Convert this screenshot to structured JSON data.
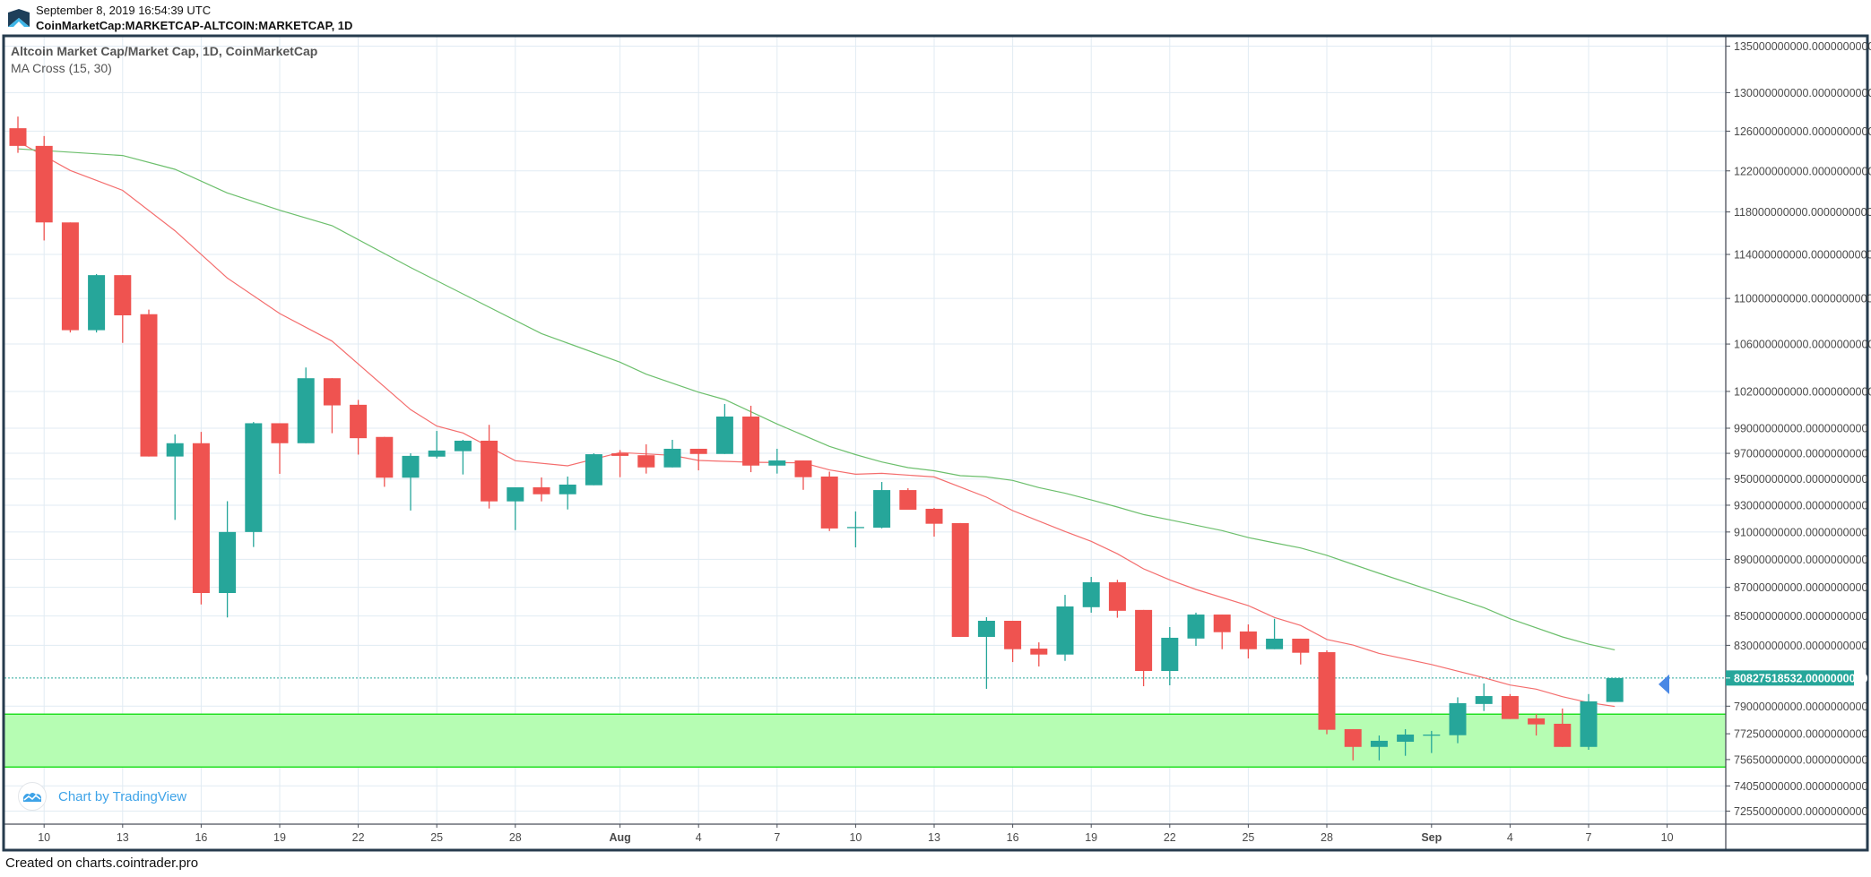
{
  "header": {
    "timestamp": "September 8, 2019 16:54:39 UTC",
    "symbol": "CoinMarketCap:MARKETCAP-ALTCOIN:MARKETCAP, 1D",
    "logo_icon": "cointrader-mountain-logo"
  },
  "legend": {
    "title": "Altcoin Market Cap/Market Cap, 1D, CoinMarketCap",
    "indicator": "MA Cross (15, 30)"
  },
  "watermark": {
    "text": "Chart by TradingView",
    "icon": "tradingview-cloud-icon"
  },
  "footer": {
    "text": "Created on charts.cointrader.pro"
  },
  "colors": {
    "up": "#26a69a",
    "down": "#ef5350",
    "ma15": "#f46d6d",
    "ma30": "#6cbf6c",
    "zone_fill": "#b6fdb3",
    "zone_border": "#22e022",
    "last_price": "#26a69a",
    "marker": "#4a88e5",
    "frame": "#263b4d",
    "grid": "#e1ebf3"
  },
  "chart_data": {
    "type": "candlestick",
    "y_scale": "log",
    "grid": true,
    "ylim": [
      72000000000,
      137000000000
    ],
    "y_ticks": [
      {
        "value": 135000000000,
        "label": "135000000000.0000000000"
      },
      {
        "value": 130000000000,
        "label": "130000000000.0000000000"
      },
      {
        "value": 126000000000,
        "label": "126000000000.0000000000"
      },
      {
        "value": 122000000000,
        "label": "122000000000.0000000000"
      },
      {
        "value": 118000000000,
        "label": "118000000000.0000000000"
      },
      {
        "value": 114000000000,
        "label": "114000000000.0000000000"
      },
      {
        "value": 110000000000,
        "label": "110000000000.0000000000"
      },
      {
        "value": 106000000000,
        "label": "106000000000.0000000000"
      },
      {
        "value": 102000000000,
        "label": "102000000000.0000000000"
      },
      {
        "value": 99000000000,
        "label": "99000000000.0000000000"
      },
      {
        "value": 97000000000,
        "label": "97000000000.0000000000"
      },
      {
        "value": 95000000000,
        "label": "95000000000.0000000000"
      },
      {
        "value": 93000000000,
        "label": "93000000000.0000000000"
      },
      {
        "value": 91000000000,
        "label": "91000000000.0000000000"
      },
      {
        "value": 89000000000,
        "label": "89000000000.0000000000"
      },
      {
        "value": 87000000000,
        "label": "87000000000.0000000000"
      },
      {
        "value": 85000000000,
        "label": "85000000000.0000000000"
      },
      {
        "value": 83000000000,
        "label": "83000000000.0000000000"
      },
      {
        "value": 79000000000,
        "label": "79000000000.0000000000"
      },
      {
        "value": 77250000000,
        "label": "77250000000.0000000000"
      },
      {
        "value": 75650000000,
        "label": "75650000000.0000000000"
      },
      {
        "value": 74050000000,
        "label": "74050000000.0000000000"
      },
      {
        "value": 72550000000,
        "label": "72550000000.0000000000"
      }
    ],
    "x_ticks": [
      {
        "date": "2019-07-10",
        "label": "10"
      },
      {
        "date": "2019-07-13",
        "label": "13"
      },
      {
        "date": "2019-07-16",
        "label": "16"
      },
      {
        "date": "2019-07-19",
        "label": "19"
      },
      {
        "date": "2019-07-22",
        "label": "22"
      },
      {
        "date": "2019-07-25",
        "label": "25"
      },
      {
        "date": "2019-07-28",
        "label": "28"
      },
      {
        "date": "2019-08-01",
        "label": "Aug",
        "month": true
      },
      {
        "date": "2019-08-04",
        "label": "4"
      },
      {
        "date": "2019-08-07",
        "label": "7"
      },
      {
        "date": "2019-08-10",
        "label": "10"
      },
      {
        "date": "2019-08-13",
        "label": "13"
      },
      {
        "date": "2019-08-16",
        "label": "16"
      },
      {
        "date": "2019-08-19",
        "label": "19"
      },
      {
        "date": "2019-08-22",
        "label": "22"
      },
      {
        "date": "2019-08-25",
        "label": "25"
      },
      {
        "date": "2019-08-28",
        "label": "28"
      },
      {
        "date": "2019-09-01",
        "label": "Sep",
        "month": true
      },
      {
        "date": "2019-09-04",
        "label": "4"
      },
      {
        "date": "2019-09-07",
        "label": "7"
      },
      {
        "date": "2019-09-10",
        "label": "10"
      }
    ],
    "last_price": {
      "value": 80827518532,
      "label": "80827518532.0000000000"
    },
    "support_zone": {
      "low": 75190000000,
      "high": 78490000000
    },
    "candles": [
      [
        "2019-07-09",
        126300000000.0,
        127500000000.0,
        123800000000.0,
        124500000000.0
      ],
      [
        "2019-07-10",
        124500000000.0,
        125500000000.0,
        115300000000.0,
        117000000000.0
      ],
      [
        "2019-07-11",
        117000000000.0,
        117000000000.0,
        107000000000.0,
        107200000000.0
      ],
      [
        "2019-07-12",
        107200000000.0,
        112200000000.0,
        107000000000.0,
        112100000000.0
      ],
      [
        "2019-07-13",
        112100000000.0,
        112100000000.0,
        106100000000.0,
        108500000000.0
      ],
      [
        "2019-07-14",
        108600000000.0,
        109000000000.0,
        96750000000.0,
        96750000000.0
      ],
      [
        "2019-07-15",
        96750000000.0,
        98500000000.0,
        91900000000.0,
        97800000000.0
      ],
      [
        "2019-07-16",
        97800000000.0,
        98700000000.0,
        85800000000.0,
        86600000000.0
      ],
      [
        "2019-07-17",
        86600000000.0,
        93300000000.0,
        84900000000.0,
        91000000000.0
      ],
      [
        "2019-07-18",
        91000000000.0,
        99500000000.0,
        89900000000.0,
        99400000000.0
      ],
      [
        "2019-07-19",
        99400000000.0,
        99400000000.0,
        95400000000.0,
        97800000000.0
      ],
      [
        "2019-07-20",
        97800000000.0,
        104000000000.0,
        97800000000.0,
        103100000000.0
      ],
      [
        "2019-07-21",
        103100000000.0,
        103100000000.0,
        98600000000.0,
        100850000000.0
      ],
      [
        "2019-07-22",
        100900000000.0,
        101300000000.0,
        96900000000.0,
        98200000000.0
      ],
      [
        "2019-07-23",
        98300000000.0,
        98300000000.0,
        94400000000.0,
        95100000000.0
      ],
      [
        "2019-07-24",
        95100000000.0,
        97000000000.0,
        92600000000.0,
        96800000000.0
      ],
      [
        "2019-07-25",
        96740000000.0,
        98780000000.0,
        96600000000.0,
        97220000000.0
      ],
      [
        "2019-07-26",
        97170000000.0,
        98070000000.0,
        95350000000.0,
        98000000000.0
      ],
      [
        "2019-07-27",
        98000000000.0,
        99270000000.0,
        92750000000.0,
        93290000000.0
      ],
      [
        "2019-07-28",
        93290000000.0,
        94360000000.0,
        91140000000.0,
        94360000000.0
      ],
      [
        "2019-07-29",
        94360000000.0,
        95120000000.0,
        93290000000.0,
        93830000000.0
      ],
      [
        "2019-07-30",
        93830000000.0,
        95190000000.0,
        92680000000.0,
        94570000000.0
      ],
      [
        "2019-07-31",
        94520000000.0,
        97000000000.0,
        94520000000.0,
        96930000000.0
      ],
      [
        "2019-08-01",
        97000000000.0,
        97260000000.0,
        95140000000.0,
        96800000000.0
      ],
      [
        "2019-08-02",
        96850000000.0,
        97710000000.0,
        95420000000.0,
        95900000000.0
      ],
      [
        "2019-08-03",
        95900000000.0,
        98070000000.0,
        95900000000.0,
        97360000000.0
      ],
      [
        "2019-08-04",
        97360000000.0,
        97360000000.0,
        95670000000.0,
        96950000000.0
      ],
      [
        "2019-08-05",
        96950000000.0,
        100960000000.0,
        96950000000.0,
        99940000000.0
      ],
      [
        "2019-08-06",
        99940000000.0,
        100820000000.0,
        95530000000.0,
        96040000000.0
      ],
      [
        "2019-08-07",
        96040000000.0,
        97360000000.0,
        95420000000.0,
        96440000000.0
      ],
      [
        "2019-08-08",
        96440000000.0,
        96440000000.0,
        94170000000.0,
        95140000000.0
      ],
      [
        "2019-08-09",
        95190000000.0,
        95570000000.0,
        91070000000.0,
        91260000000.0
      ],
      [
        "2019-08-10",
        91300000000.0,
        92530000000.0,
        89870000000.0,
        91370000000.0
      ],
      [
        "2019-08-11",
        91320000000.0,
        94770000000.0,
        91270000000.0,
        94150000000.0
      ],
      [
        "2019-08-12",
        94150000000.0,
        94290000000.0,
        92660000000.0,
        92660000000.0
      ],
      [
        "2019-08-13",
        92730000000.0,
        92800000000.0,
        90660000000.0,
        91610000000.0
      ],
      [
        "2019-08-14",
        91660000000.0,
        91660000000.0,
        83570000000.0,
        83570000000.0
      ],
      [
        "2019-08-15",
        83570000000.0,
        84920000000.0,
        80120000000.0,
        84670000000.0
      ],
      [
        "2019-08-16",
        84670000000.0,
        84670000000.0,
        81880000000.0,
        82740000000.0
      ],
      [
        "2019-08-17",
        82780000000.0,
        83200000000.0,
        81590000000.0,
        82380000000.0
      ],
      [
        "2019-08-18",
        82380000000.0,
        86470000000.0,
        81960000000.0,
        85660000000.0
      ],
      [
        "2019-08-19",
        85610000000.0,
        87740000000.0,
        85230000000.0,
        87360000000.0
      ],
      [
        "2019-08-20",
        87360000000.0,
        87530000000.0,
        84880000000.0,
        85360000000.0
      ],
      [
        "2019-08-21",
        85420000000.0,
        85420000000.0,
        80290000000.0,
        81290000000.0
      ],
      [
        "2019-08-22",
        81290000000.0,
        84240000000.0,
        80350000000.0,
        83510000000.0
      ],
      [
        "2019-08-23",
        83460000000.0,
        85230000000.0,
        82960000000.0,
        85100000000.0
      ],
      [
        "2019-08-24",
        85100000000.0,
        85100000000.0,
        82740000000.0,
        83890000000.0
      ],
      [
        "2019-08-25",
        83940000000.0,
        84420000000.0,
        82120000000.0,
        82740000000.0
      ],
      [
        "2019-08-26",
        82740000000.0,
        84810000000.0,
        82740000000.0,
        83450000000.0
      ],
      [
        "2019-08-27",
        83450000000.0,
        83450000000.0,
        81720000000.0,
        82500000000.0
      ],
      [
        "2019-08-28",
        82540000000.0,
        82660000000.0,
        77220000000.0,
        77500000000.0
      ],
      [
        "2019-08-29",
        77540000000.0,
        77540000000.0,
        75600000000.0,
        76430000000.0
      ],
      [
        "2019-08-30",
        76430000000.0,
        77140000000.0,
        75600000000.0,
        76810000000.0
      ],
      [
        "2019-08-31",
        76750000000.0,
        77540000000.0,
        75880000000.0,
        77200000000.0
      ],
      [
        "2019-09-01",
        77180000000.0,
        77430000000.0,
        76050000000.0,
        77200000000.0
      ],
      [
        "2019-09-02",
        77160000000.0,
        79570000000.0,
        76660000000.0,
        79190000000.0
      ],
      [
        "2019-09-03",
        79140000000.0,
        80470000000.0,
        78690000000.0,
        79650000000.0
      ],
      [
        "2019-09-04",
        79650000000.0,
        79780000000.0,
        78180000000.0,
        78180000000.0
      ],
      [
        "2019-09-05",
        78220000000.0,
        78490000000.0,
        77140000000.0,
        77840000000.0
      ],
      [
        "2019-09-06",
        77880000000.0,
        78850000000.0,
        76430000000.0,
        76430000000.0
      ],
      [
        "2019-09-07",
        76430000000.0,
        79780000000.0,
        76250000000.0,
        79310000000.0
      ],
      [
        "2019-09-08",
        79270000000.0,
        80827500000.0,
        79270000000.0,
        80827518532.0
      ]
    ],
    "candle_fields": [
      "date",
      "open",
      "high",
      "low",
      "close"
    ],
    "series": [
      {
        "name": "MA 15",
        "points": [
          [
            "2019-07-09",
            124940000000.0
          ],
          [
            "2019-07-11",
            122040000000.0
          ],
          [
            "2019-07-13",
            120090000000.0
          ],
          [
            "2019-07-15",
            116210000000.0
          ],
          [
            "2019-07-17",
            111830000000.0
          ],
          [
            "2019-07-19",
            108660000000.0
          ],
          [
            "2019-07-21",
            106250000000.0
          ],
          [
            "2019-07-24",
            100500000000.0
          ],
          [
            "2019-07-25",
            99170000000.0
          ],
          [
            "2019-07-26",
            98620000000.0
          ],
          [
            "2019-07-28",
            96420000000.0
          ],
          [
            "2019-07-30",
            96020000000.0
          ],
          [
            "2019-08-01",
            97060000000.0
          ],
          [
            "2019-08-03",
            96840000000.0
          ],
          [
            "2019-08-04",
            96440000000.0
          ],
          [
            "2019-08-06",
            96300000000.0
          ],
          [
            "2019-08-08",
            96250000000.0
          ],
          [
            "2019-08-09",
            95700000000.0
          ],
          [
            "2019-08-10",
            95370000000.0
          ],
          [
            "2019-08-11",
            95440000000.0
          ],
          [
            "2019-08-13",
            95160000000.0
          ],
          [
            "2019-08-15",
            93610000000.0
          ],
          [
            "2019-08-16",
            92590000000.0
          ],
          [
            "2019-08-18",
            91040000000.0
          ],
          [
            "2019-08-19",
            90310000000.0
          ],
          [
            "2019-08-20",
            89400000000.0
          ],
          [
            "2019-08-21",
            88320000000.0
          ],
          [
            "2019-08-22",
            87530000000.0
          ],
          [
            "2019-08-23",
            86850000000.0
          ],
          [
            "2019-08-25",
            85720000000.0
          ],
          [
            "2019-08-26",
            84900000000.0
          ],
          [
            "2019-08-27",
            84350000000.0
          ],
          [
            "2019-08-28",
            83400000000.0
          ],
          [
            "2019-08-29",
            83020000000.0
          ],
          [
            "2019-08-30",
            82460000000.0
          ],
          [
            "2019-09-01",
            81720000000.0
          ],
          [
            "2019-09-03",
            80840000000.0
          ],
          [
            "2019-09-04",
            80370000000.0
          ],
          [
            "2019-09-05",
            80100000000.0
          ],
          [
            "2019-09-06",
            79610000000.0
          ],
          [
            "2019-09-07",
            79230000000.0
          ],
          [
            "2019-09-08",
            78980000000.0
          ]
        ]
      },
      {
        "name": "MA 30",
        "points": [
          [
            "2019-07-09",
            124200000000.0
          ],
          [
            "2019-07-13",
            123530000000.0
          ],
          [
            "2019-07-15",
            122160000000.0
          ],
          [
            "2019-07-17",
            119830000000.0
          ],
          [
            "2019-07-19",
            118160000000.0
          ],
          [
            "2019-07-21",
            116690000000.0
          ],
          [
            "2019-07-24",
            112800000000.0
          ],
          [
            "2019-07-29",
            106900000000.0
          ],
          [
            "2019-08-01",
            104450000000.0
          ],
          [
            "2019-08-02",
            103440000000.0
          ],
          [
            "2019-08-04",
            101940000000.0
          ],
          [
            "2019-08-05",
            101330000000.0
          ],
          [
            "2019-08-07",
            99340000000.0
          ],
          [
            "2019-08-09",
            97550000000.0
          ],
          [
            "2019-08-10",
            96900000000.0
          ],
          [
            "2019-08-11",
            96320000000.0
          ],
          [
            "2019-08-12",
            95880000000.0
          ],
          [
            "2019-08-13",
            95640000000.0
          ],
          [
            "2019-08-14",
            95260000000.0
          ],
          [
            "2019-08-15",
            95160000000.0
          ],
          [
            "2019-08-16",
            94890000000.0
          ],
          [
            "2019-08-17",
            94340000000.0
          ],
          [
            "2019-08-18",
            93910000000.0
          ],
          [
            "2019-08-19",
            93400000000.0
          ],
          [
            "2019-08-20",
            92860000000.0
          ],
          [
            "2019-08-21",
            92300000000.0
          ],
          [
            "2019-08-22",
            91900000000.0
          ],
          [
            "2019-08-23",
            91500000000.0
          ],
          [
            "2019-08-24",
            91100000000.0
          ],
          [
            "2019-08-25",
            90590000000.0
          ],
          [
            "2019-08-26",
            90200000000.0
          ],
          [
            "2019-08-27",
            89830000000.0
          ],
          [
            "2019-08-28",
            89290000000.0
          ],
          [
            "2019-08-29",
            88640000000.0
          ],
          [
            "2019-08-30",
            88000000000.0
          ],
          [
            "2019-09-01",
            86770000000.0
          ],
          [
            "2019-09-03",
            85580000000.0
          ],
          [
            "2019-09-04",
            84810000000.0
          ],
          [
            "2019-09-06",
            83570000000.0
          ],
          [
            "2019-09-07",
            83080000000.0
          ],
          [
            "2019-09-08",
            82700000000.0
          ]
        ]
      }
    ]
  }
}
